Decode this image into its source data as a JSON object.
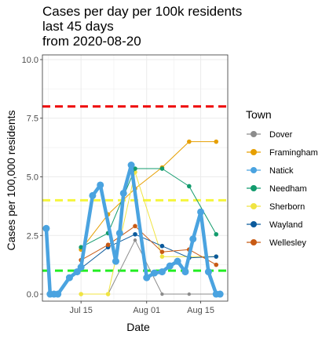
{
  "chart_data": {
    "type": "line",
    "title_lines": [
      "Cases per day per 100k residents",
      "last 45 days",
      "from 2020-08-20"
    ],
    "xlabel": "Date",
    "ylabel": "Cases per 100,000 residents",
    "x_ticks": [
      {
        "date": "2020-07-15",
        "label": "Jul 15"
      },
      {
        "date": "2020-08-01",
        "label": "Aug 01"
      },
      {
        "date": "2020-08-15",
        "label": "Aug 15"
      }
    ],
    "xlim": [
      "2020-07-05",
      "2020-08-22"
    ],
    "y_ticks": [
      0.0,
      2.5,
      5.0,
      7.5,
      10.0
    ],
    "y_tick_labels": [
      "0.0",
      "2.5",
      "5.0",
      "7.5",
      "10.0"
    ],
    "ylim": [
      -0.3,
      10.2
    ],
    "grid": true,
    "legend_title": "Town",
    "legend_position": "right",
    "reference_lines": [
      {
        "y": 8.0,
        "color": "#ee0000"
      },
      {
        "y": 4.0,
        "color": "#f5f53c"
      },
      {
        "y": 1.0,
        "color": "#22ee22"
      }
    ],
    "series": [
      {
        "name": "Dover",
        "color": "#8c8c8c",
        "width": 1,
        "point": 2.2,
        "points": [
          [
            "2020-07-15",
            0.0
          ],
          [
            "2020-07-22",
            0.0
          ],
          [
            "2020-07-29",
            2.3
          ],
          [
            "2020-08-05",
            0.0
          ],
          [
            "2020-08-12",
            0.0
          ],
          [
            "2020-08-19",
            0.0
          ]
        ]
      },
      {
        "name": "Framingham",
        "color": "#e69f00",
        "width": 1,
        "point": 2.8,
        "points": [
          [
            "2020-07-15",
            1.9
          ],
          [
            "2020-07-22",
            3.4
          ],
          [
            "2020-07-29",
            4.5
          ],
          [
            "2020-08-05",
            5.4
          ],
          [
            "2020-08-12",
            6.5
          ],
          [
            "2020-08-19",
            6.5
          ]
        ]
      },
      {
        "name": "Sherborn",
        "color": "#f0e442",
        "width": 1,
        "point": 2.8,
        "points": [
          [
            "2020-07-15",
            0.0
          ],
          [
            "2020-07-22",
            0.0
          ],
          [
            "2020-07-29",
            5.2
          ],
          [
            "2020-08-05",
            1.6
          ],
          [
            "2020-08-12",
            1.6
          ],
          [
            "2020-08-19",
            1.6
          ]
        ]
      },
      {
        "name": "Needham",
        "color": "#129b6d",
        "width": 1,
        "point": 2.8,
        "points": [
          [
            "2020-07-15",
            2.0
          ],
          [
            "2020-07-22",
            2.6
          ],
          [
            "2020-07-29",
            5.35
          ],
          [
            "2020-08-05",
            5.35
          ],
          [
            "2020-08-12",
            4.6
          ],
          [
            "2020-08-19",
            2.55
          ]
        ]
      },
      {
        "name": "Wayland",
        "color": "#0b5a9c",
        "width": 1,
        "point": 2.8,
        "points": [
          [
            "2020-07-15",
            1.1
          ],
          [
            "2020-07-22",
            2.0
          ],
          [
            "2020-07-29",
            2.55
          ],
          [
            "2020-08-05",
            2.05
          ],
          [
            "2020-08-12",
            1.55
          ],
          [
            "2020-08-19",
            1.6
          ]
        ]
      },
      {
        "name": "Wellesley",
        "color": "#c85a14",
        "width": 1,
        "point": 2.8,
        "points": [
          [
            "2020-07-15",
            1.45
          ],
          [
            "2020-07-22",
            2.1
          ],
          [
            "2020-07-29",
            2.9
          ],
          [
            "2020-08-05",
            1.8
          ],
          [
            "2020-08-12",
            1.9
          ],
          [
            "2020-08-19",
            1.25
          ]
        ]
      },
      {
        "name": "Natick",
        "color": "#4aa3e0",
        "width": 4.5,
        "point": 4.5,
        "points": [
          [
            "2020-07-06",
            2.8
          ],
          [
            "2020-07-07",
            0.0
          ],
          [
            "2020-07-08",
            0.0
          ],
          [
            "2020-07-09",
            0.0
          ],
          [
            "2020-07-12",
            0.7
          ],
          [
            "2020-07-14",
            0.95
          ],
          [
            "2020-07-15",
            1.15
          ],
          [
            "2020-07-18",
            4.2
          ],
          [
            "2020-07-20",
            4.65
          ],
          [
            "2020-07-24",
            1.4
          ],
          [
            "2020-07-25",
            2.6
          ],
          [
            "2020-07-26",
            4.3
          ],
          [
            "2020-07-28",
            5.5
          ],
          [
            "2020-08-01",
            0.7
          ],
          [
            "2020-08-03",
            0.9
          ],
          [
            "2020-08-05",
            0.95
          ],
          [
            "2020-08-07",
            1.2
          ],
          [
            "2020-08-09",
            1.4
          ],
          [
            "2020-08-11",
            0.95
          ],
          [
            "2020-08-13",
            2.35
          ],
          [
            "2020-08-15",
            3.5
          ],
          [
            "2020-08-17",
            0.95
          ],
          [
            "2020-08-19",
            0.0
          ],
          [
            "2020-08-20",
            0.0
          ]
        ]
      }
    ],
    "legend_entries": [
      {
        "name": "Dover",
        "color": "#8c8c8c"
      },
      {
        "name": "Framingham",
        "color": "#e69f00"
      },
      {
        "name": "Natick",
        "color": "#4aa3e0"
      },
      {
        "name": "Needham",
        "color": "#129b6d"
      },
      {
        "name": "Sherborn",
        "color": "#f0e442"
      },
      {
        "name": "Wayland",
        "color": "#0b5a9c"
      },
      {
        "name": "Wellesley",
        "color": "#c85a14"
      }
    ],
    "panel_border_color": "#333333",
    "grid_color": "#ebebeb"
  }
}
